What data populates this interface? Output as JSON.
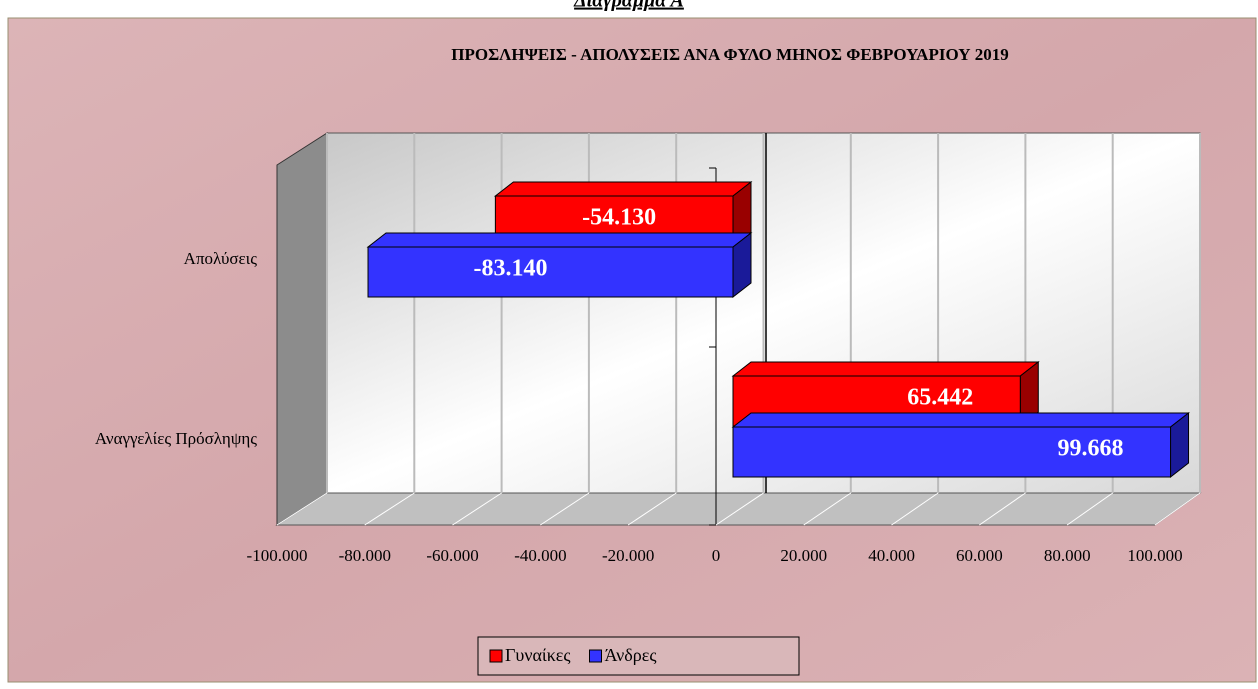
{
  "chart_data": {
    "type": "bar3d_horizontal",
    "heading": "Διάγραμμα Α",
    "title": "ΠΡΟΣΛΗΨΕΙΣ - ΑΠΟΛΥΣΕΙΣ ΑΝΑ ΦΥΛΟ ΜΗΝΟΣ  ΦΕΒΡΟΥΑΡΙΟΥ 2019",
    "categories": [
      "Απολύσεις",
      "Αναγγελίες Πρόσληψης"
    ],
    "series": [
      {
        "name": "Γυναίκες",
        "color": "#ff0000",
        "values": [
          -54130,
          65442
        ],
        "value_labels": [
          "-54.130",
          "65.442"
        ]
      },
      {
        "name": "Άνδρες",
        "color": "#3333ff",
        "values": [
          -83140,
          99668
        ],
        "value_labels": [
          "-83.140",
          "99.668"
        ]
      }
    ],
    "xlim": [
      -100000,
      100000
    ],
    "xticks": [
      {
        "value": -100000,
        "label": "-100.000"
      },
      {
        "value": -80000,
        "label": "-80.000"
      },
      {
        "value": -60000,
        "label": "-60.000"
      },
      {
        "value": -40000,
        "label": "-40.000"
      },
      {
        "value": -20000,
        "label": "-20.000"
      },
      0,
      {
        "value": 20000,
        "label": "20.000"
      },
      {
        "value": 40000,
        "label": "40.000"
      },
      {
        "value": 60000,
        "label": "60.000"
      },
      {
        "value": 80000,
        "label": "80.000"
      },
      {
        "value": 100000,
        "label": "100.000"
      }
    ],
    "grid": true,
    "legend": "bottom"
  }
}
